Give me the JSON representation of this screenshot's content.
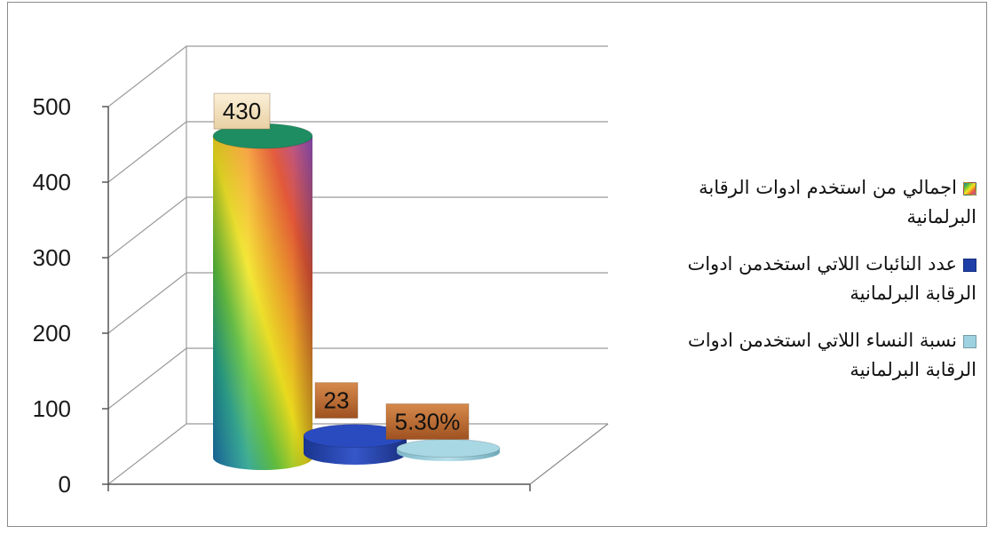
{
  "chart_data": {
    "type": "bar",
    "variant": "3d-cylinder",
    "categories": [
      "اجمالي من استخدم ادوات الرقابة البرلمانية",
      "عدد النائبات اللاتي استخدمن ادوات الرقابة البرلمانية",
      "نسبة النساء اللاتي استخدمن ادوات الرقابة البرلمانية"
    ],
    "values": [
      430,
      23,
      5.3
    ],
    "data_labels": [
      "430",
      "23",
      "5.30%"
    ],
    "ylim": [
      0,
      500
    ],
    "yticks": [
      0,
      100,
      200,
      300,
      400,
      500
    ],
    "ytick_labels": [
      "0",
      "100",
      "200",
      "300",
      "400",
      "500"
    ],
    "grid": true,
    "legend_position": "right",
    "series_colors": [
      "#d9a040",
      "#1f3fa8",
      "#8fc9d9"
    ]
  },
  "legend": {
    "items": [
      {
        "label": "اجمالي من استخدم ادوات الرقابة البرلمانية",
        "swatch": "rainbow"
      },
      {
        "label": "عدد النائبات اللاتي استخدمن ادوات الرقابة البرلمانية",
        "swatch": "#1f3fa8"
      },
      {
        "label": "نسبة النساء اللاتي استخدمن ادوات الرقابة البرلمانية",
        "swatch": "#9fd2e0"
      }
    ]
  }
}
